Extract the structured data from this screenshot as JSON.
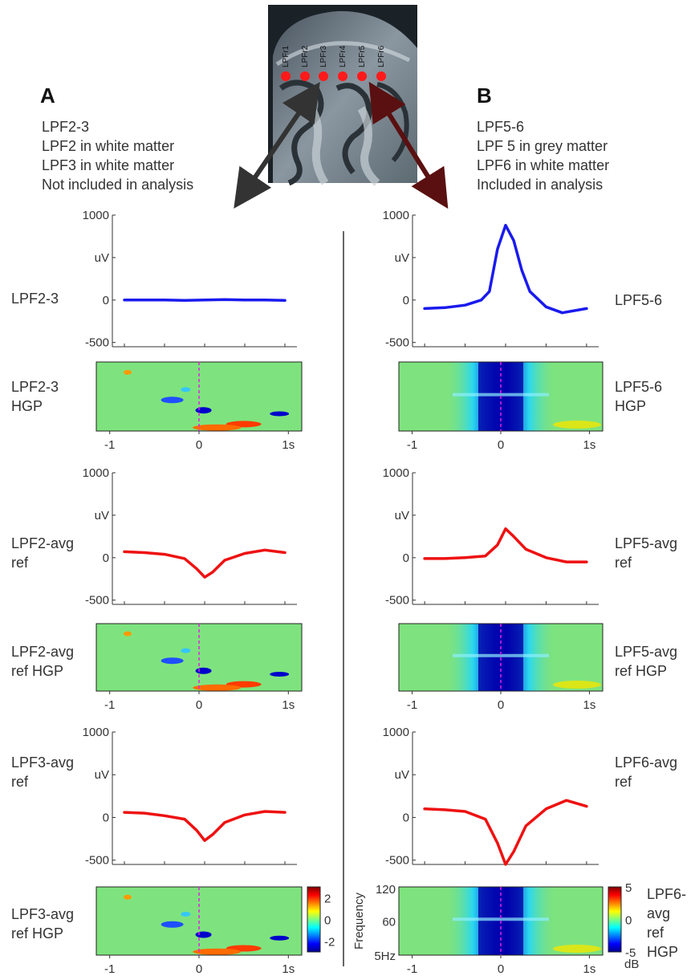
{
  "panels": [
    {
      "letter": "A",
      "desc": [
        "LPF2-3",
        "LPF2 in white matter",
        "LPF3 in white matter",
        "Not included in analysis"
      ],
      "rows": [
        {
          "label_lines": [
            "LPF2-3"
          ],
          "hgp_label_lines": [
            "LPF2-3",
            "HGP"
          ]
        },
        {
          "label_lines": [
            "LPF2-avg",
            "ref"
          ],
          "hgp_label_lines": [
            "LPF2-avg",
            "ref HGP"
          ]
        },
        {
          "label_lines": [
            "LPF3-avg",
            "ref"
          ],
          "hgp_label_lines": [
            "LPF3-avg",
            "ref HGP"
          ]
        }
      ]
    },
    {
      "letter": "B",
      "desc": [
        "LPF5-6",
        "LPF 5 in grey matter",
        "LPF6 in white matter",
        "Included in analysis"
      ],
      "rows": [
        {
          "label_lines": [
            "LPF5-6"
          ],
          "hgp_label_lines": [
            "LPF5-6",
            "HGP"
          ]
        },
        {
          "label_lines": [
            "LPF5-avg",
            "ref"
          ],
          "hgp_label_lines": [
            "LPF5-avg",
            "ref HGP"
          ]
        },
        {
          "label_lines": [
            "LPF6-avg",
            "ref"
          ],
          "hgp_label_lines": [
            "LPF6-",
            "avg",
            "ref",
            "HGP"
          ]
        }
      ]
    }
  ],
  "electrode_labels": [
    "LPFr1",
    "LPFr2",
    "LPFr3",
    "LPFr4",
    "LPFr5",
    "LPFr6"
  ],
  "colors": {
    "erp_bipolar": "#1a1aee",
    "erp_ref": "#ee1111",
    "arrow_a": "#333333",
    "arrow_b": "#5a1010",
    "electrode": "#ff1a1a",
    "spectrogram_bg": "#7ee37e",
    "zero_line": "#dd22dd"
  },
  "chart_data": [
    {
      "type": "line",
      "title": "",
      "panel": "A",
      "trace": "LPF2-3",
      "ylabel": "uV",
      "ylim": [
        -550,
        1000
      ],
      "ytick_labels": [
        "1000",
        "uV",
        "0",
        "-500"
      ],
      "x": [
        -1,
        -0.75,
        -0.5,
        -0.25,
        0,
        0.25,
        0.5,
        0.75,
        1
      ],
      "y": [
        0,
        0,
        0,
        -5,
        0,
        5,
        0,
        0,
        -5
      ]
    },
    {
      "type": "heatmap",
      "title": "",
      "panel": "A",
      "trace": "LPF2-3 HGP",
      "xtick_labels": [
        "-1",
        "0",
        "1s"
      ],
      "xlim": [
        -1.15,
        1.15
      ]
    },
    {
      "type": "line",
      "title": "",
      "panel": "A",
      "trace": "LPF2-avg ref",
      "ylabel": "uV",
      "ylim": [
        -550,
        1000
      ],
      "ytick_labels": [
        "1000",
        "uV",
        "0",
        "-500"
      ],
      "x": [
        -1,
        -0.75,
        -0.5,
        -0.25,
        -0.1,
        0,
        0.1,
        0.25,
        0.5,
        0.75,
        1
      ],
      "y": [
        70,
        60,
        40,
        -10,
        -130,
        -230,
        -170,
        -30,
        50,
        90,
        60
      ]
    },
    {
      "type": "heatmap",
      "title": "",
      "panel": "A",
      "trace": "LPF2-avg ref HGP",
      "xtick_labels": [
        "-1",
        "0",
        "1s"
      ],
      "xlim": [
        -1.15,
        1.15
      ]
    },
    {
      "type": "line",
      "title": "",
      "panel": "A",
      "trace": "LPF3-avg ref",
      "ylabel": "uV",
      "ylim": [
        -550,
        1000
      ],
      "ytick_labels": [
        "1000",
        "uV",
        "0",
        "-500"
      ],
      "x": [
        -1,
        -0.75,
        -0.5,
        -0.25,
        -0.1,
        0,
        0.1,
        0.25,
        0.5,
        0.75,
        1
      ],
      "y": [
        60,
        50,
        20,
        -20,
        -150,
        -270,
        -200,
        -60,
        30,
        70,
        60
      ]
    },
    {
      "type": "heatmap",
      "title": "",
      "panel": "A",
      "trace": "LPF3-avg ref HGP",
      "xtick_labels": [
        "-1",
        "0",
        "1s"
      ],
      "xlim": [
        -1.15,
        1.15
      ],
      "colorbar": {
        "ticks": [
          "2",
          "0",
          "-2"
        ],
        "range": [
          -3,
          3
        ]
      }
    },
    {
      "type": "line",
      "title": "",
      "panel": "B",
      "trace": "LPF5-6",
      "ylabel": "uV",
      "ylim": [
        -550,
        1000
      ],
      "ytick_labels": [
        "1000",
        "uV",
        "0",
        "-500"
      ],
      "x": [
        -1,
        -0.75,
        -0.5,
        -0.3,
        -0.2,
        -0.1,
        0,
        0.1,
        0.2,
        0.3,
        0.5,
        0.7,
        1
      ],
      "y": [
        -100,
        -90,
        -60,
        0,
        100,
        600,
        880,
        700,
        350,
        100,
        -80,
        -150,
        -100
      ]
    },
    {
      "type": "heatmap",
      "title": "",
      "panel": "B",
      "trace": "LPF5-6 HGP",
      "xtick_labels": [
        "-1",
        "0",
        "1s"
      ],
      "xlim": [
        -1.15,
        1.15
      ]
    },
    {
      "type": "line",
      "title": "",
      "panel": "B",
      "trace": "LPF5-avg ref",
      "ylabel": "uV",
      "ylim": [
        -550,
        1000
      ],
      "ytick_labels": [
        "1000",
        "uV",
        "0",
        "-500"
      ],
      "x": [
        -1,
        -0.75,
        -0.5,
        -0.25,
        -0.1,
        0,
        0.1,
        0.25,
        0.5,
        0.75,
        1
      ],
      "y": [
        -10,
        -10,
        0,
        20,
        150,
        340,
        250,
        100,
        0,
        -50,
        -50
      ]
    },
    {
      "type": "heatmap",
      "title": "",
      "panel": "B",
      "trace": "LPF5-avg ref HGP",
      "xtick_labels": [
        "-1",
        "0",
        "1s"
      ],
      "xlim": [
        -1.15,
        1.15
      ]
    },
    {
      "type": "line",
      "title": "",
      "panel": "B",
      "trace": "LPF6-avg ref",
      "ylabel": "uV",
      "ylim": [
        -550,
        1000
      ],
      "ytick_labels": [
        "1000",
        "uV",
        "0",
        "-500"
      ],
      "x": [
        -1,
        -0.75,
        -0.5,
        -0.25,
        -0.1,
        0,
        0.1,
        0.25,
        0.5,
        0.75,
        1
      ],
      "y": [
        100,
        90,
        70,
        -20,
        -300,
        -550,
        -400,
        -100,
        100,
        200,
        130
      ]
    },
    {
      "type": "heatmap",
      "title": "",
      "panel": "B",
      "trace": "LPF6-avg ref HGP",
      "ylabel": "Frequency",
      "xtick_labels": [
        "-1",
        "0",
        "1s"
      ],
      "xlim": [
        -1.15,
        1.15
      ],
      "ytick_labels": [
        "120",
        "60",
        "5Hz"
      ],
      "colorbar": {
        "ticks": [
          "5",
          "0",
          "-5"
        ],
        "range": [
          -5,
          5
        ],
        "unit_label": "dB"
      }
    }
  ]
}
